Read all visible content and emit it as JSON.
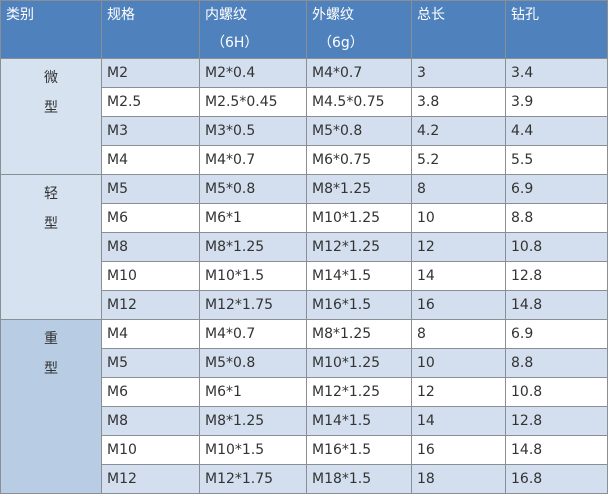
{
  "headers": [
    {
      "main": "类别",
      "sub": ""
    },
    {
      "main": "规格",
      "sub": ""
    },
    {
      "main": "内螺纹",
      "sub": "（6H）"
    },
    {
      "main": "外螺纹",
      "sub": "（6g）"
    },
    {
      "main": "总长",
      "sub": ""
    },
    {
      "main": "钻孔",
      "sub": ""
    }
  ],
  "groups": [
    {
      "category": [
        "微",
        "型"
      ],
      "rows": [
        [
          "M2",
          "M2*0.4",
          "M4*0.7",
          "3",
          "3.4"
        ],
        [
          "M2.5",
          "M2.5*0.45",
          "M4.5*0.75",
          "3.8",
          "3.9"
        ],
        [
          "M3",
          "M3*0.5",
          "M5*0.8",
          "4.2",
          "4.4"
        ],
        [
          "M4",
          "M4*0.7",
          "M6*0.75",
          "5.2",
          "5.5"
        ]
      ]
    },
    {
      "category": [
        "轻",
        "型"
      ],
      "rows": [
        [
          "M5",
          "M5*0.8",
          "M8*1.25",
          "8",
          "6.9"
        ],
        [
          "M6",
          "M6*1",
          "M10*1.25",
          "10",
          "8.8"
        ],
        [
          "M8",
          "M8*1.25",
          "M12*1.25",
          "12",
          "10.8"
        ],
        [
          "M10",
          "M10*1.5",
          "M14*1.5",
          "14",
          "12.8"
        ],
        [
          "M12",
          "M12*1.75",
          "M16*1.5",
          "16",
          "14.8"
        ]
      ]
    },
    {
      "category": [
        "重",
        "型"
      ],
      "rows": [
        [
          "M4",
          "M4*0.7",
          "M8*1.25",
          "8",
          "6.9"
        ],
        [
          "M5",
          "M5*0.8",
          "M10*1.25",
          "10",
          "8.8"
        ],
        [
          "M6",
          "M6*1",
          "M12*1.25",
          "12",
          "10.8"
        ],
        [
          "M8",
          "M8*1.25",
          "M14*1.5",
          "14",
          "12.8"
        ],
        [
          "M10",
          "M10*1.5",
          "M16*1.5",
          "16",
          "14.8"
        ],
        [
          "M12",
          "M12*1.75",
          "M18*1.5",
          "18",
          "16.8"
        ]
      ]
    }
  ],
  "colors": {
    "header": "#4f81bd",
    "row_alt": "#d3dfee",
    "category_light": "#d6e2f0",
    "category_heavy": "#b8cce4"
  }
}
